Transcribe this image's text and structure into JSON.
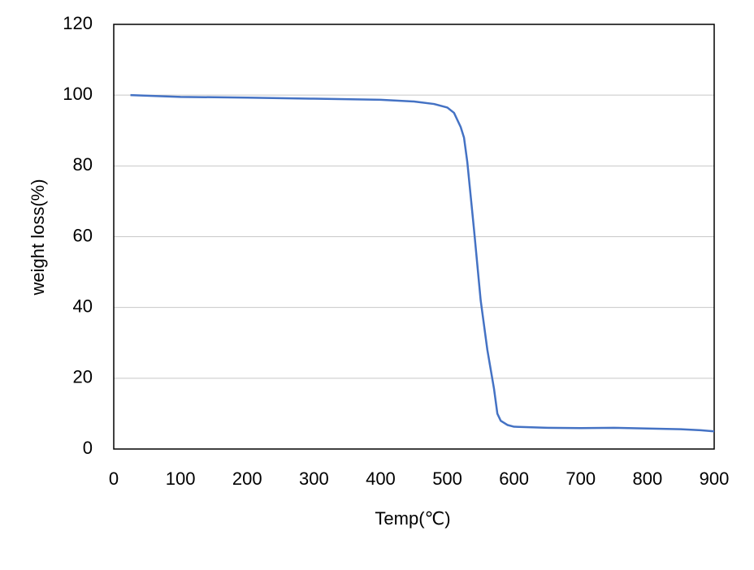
{
  "chart_data": {
    "type": "line",
    "x_label": "Temp(℃)",
    "y_label": "weight loss(%)",
    "x": [
      25,
      100,
      200,
      300,
      400,
      450,
      480,
      500,
      510,
      520,
      525,
      530,
      540,
      550,
      560,
      570,
      575,
      580,
      590,
      600,
      650,
      700,
      750,
      800,
      850,
      880,
      900
    ],
    "series": [
      {
        "color": "#4472c4",
        "values": [
          100,
          99.5,
          99.3,
          99,
          98.7,
          98.2,
          97.5,
          96.5,
          95,
          91,
          88,
          81,
          62,
          42,
          28,
          17,
          10,
          8,
          6.8,
          6.3,
          6,
          5.9,
          6,
          5.8,
          5.6,
          5.3,
          5
        ]
      }
    ],
    "xlim": [
      0,
      900
    ],
    "xticks": [
      0,
      100,
      200,
      300,
      400,
      500,
      600,
      700,
      800,
      900
    ],
    "ylim": [
      0,
      120
    ],
    "yticks": [
      0,
      20,
      40,
      60,
      80,
      100,
      120
    ],
    "grid": true
  }
}
